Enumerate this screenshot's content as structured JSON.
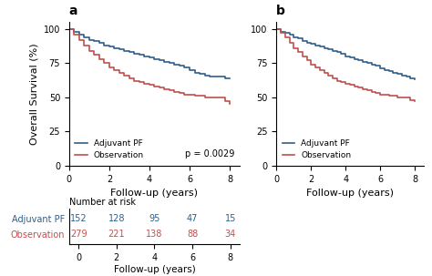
{
  "chart_data": [
    {
      "type": "line",
      "title": "a",
      "line_style": "steps",
      "xlabel": "Follow-up (years)",
      "ylabel": "Overall Survival (%)",
      "x": [
        0,
        0.25,
        0.5,
        0.75,
        1.0,
        1.25,
        1.5,
        1.75,
        2.0,
        2.25,
        2.5,
        2.75,
        3.0,
        3.25,
        3.5,
        3.75,
        4.0,
        4.25,
        4.5,
        4.75,
        5.0,
        5.25,
        5.5,
        5.75,
        6.0,
        6.25,
        6.5,
        6.75,
        7.0,
        7.25,
        7.5,
        7.75,
        8.0
      ],
      "series": [
        {
          "name": "Adjuvant PF",
          "color": "#2e5f8a",
          "values": [
            100,
            98,
            96,
            94,
            92,
            91,
            90,
            88,
            87,
            86,
            85,
            84,
            83,
            82,
            81,
            80,
            79,
            78,
            77,
            76,
            75,
            74,
            73,
            72,
            70,
            68,
            67,
            66,
            65,
            65,
            65,
            64,
            64
          ]
        },
        {
          "name": "Observation",
          "color": "#c0504d",
          "values": [
            100,
            96,
            92,
            88,
            84,
            81,
            78,
            75,
            72,
            70,
            68,
            66,
            64,
            62,
            61,
            60,
            59,
            58,
            57,
            56,
            55,
            54,
            53,
            52,
            52,
            51,
            51,
            50,
            50,
            50,
            50,
            47,
            45
          ]
        }
      ],
      "annotations": [
        "p = 0.0029"
      ],
      "xlim": [
        0,
        8.5
      ],
      "ylim": [
        0,
        105
      ],
      "xticks": [
        0,
        2,
        4,
        6,
        8
      ],
      "yticks": [
        0,
        25,
        50,
        75,
        100
      ],
      "legend": "lower left"
    },
    {
      "type": "line",
      "title": "b",
      "line_style": "steps",
      "xlabel": "Follow-up (years)",
      "x": [
        0,
        0.25,
        0.5,
        0.75,
        1.0,
        1.25,
        1.5,
        1.75,
        2.0,
        2.25,
        2.5,
        2.75,
        3.0,
        3.25,
        3.5,
        3.75,
        4.0,
        4.25,
        4.5,
        4.75,
        5.0,
        5.25,
        5.5,
        5.75,
        6.0,
        6.25,
        6.5,
        6.75,
        7.0,
        7.25,
        7.5,
        7.75,
        8.0
      ],
      "series": [
        {
          "name": "Adjuvant PF",
          "color": "#2e5f8a",
          "values": [
            100,
            98,
            97,
            96,
            94,
            93,
            91,
            90,
            89,
            88,
            87,
            86,
            85,
            84,
            83,
            82,
            80,
            79,
            78,
            77,
            76,
            75,
            74,
            73,
            71,
            70,
            69,
            68,
            67,
            66,
            65,
            64,
            63
          ]
        },
        {
          "name": "Observation",
          "color": "#c0504d",
          "values": [
            100,
            97,
            94,
            90,
            86,
            83,
            80,
            77,
            74,
            72,
            70,
            68,
            66,
            64,
            62,
            61,
            60,
            59,
            58,
            57,
            56,
            55,
            54,
            53,
            52,
            52,
            51,
            51,
            50,
            50,
            50,
            48,
            47
          ]
        }
      ],
      "xlim": [
        0,
        8.5
      ],
      "ylim": [
        0,
        105
      ],
      "xticks": [
        0,
        2,
        4,
        6,
        8
      ],
      "yticks": [
        0,
        25,
        50,
        75,
        100
      ],
      "legend": "lower left"
    },
    {
      "type": "table",
      "title": "Number at risk",
      "xlabel": "Follow-up (years)",
      "x": [
        0,
        2,
        4,
        6,
        8
      ],
      "series": [
        {
          "name": "Adjuvant PF",
          "color": "#2e5f8a",
          "values": [
            152,
            128,
            95,
            47,
            15
          ]
        },
        {
          "name": "Observation",
          "color": "#c0504d",
          "values": [
            279,
            221,
            138,
            88,
            34
          ]
        }
      ],
      "xlim": [
        -0.5,
        8.5
      ],
      "xticks": [
        0,
        2,
        4,
        6,
        8
      ],
      "data_labels": true
    }
  ]
}
